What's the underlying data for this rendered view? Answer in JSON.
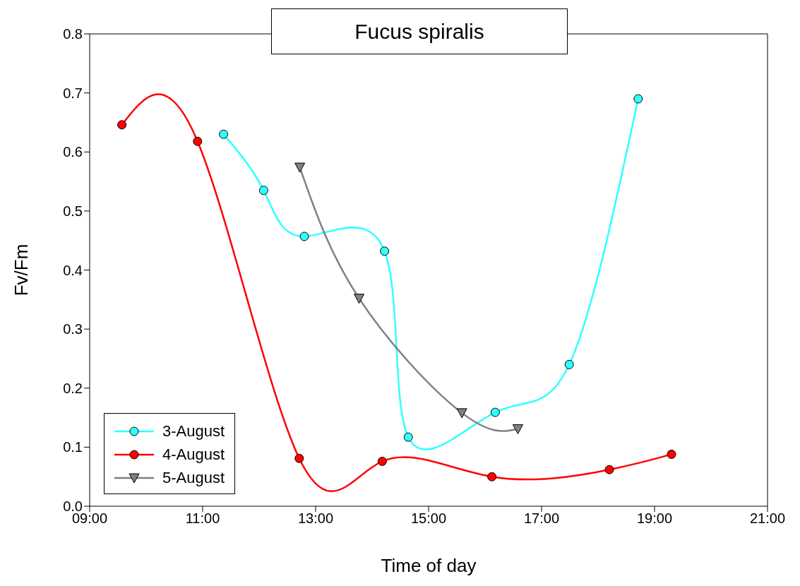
{
  "chart_data": {
    "type": "line",
    "title": "Fucus spiralis",
    "xlabel": "Time of day",
    "ylabel": "Fv/Fm",
    "xlim": [
      9,
      21
    ],
    "xticks": [
      {
        "value": 9,
        "label": "09:00"
      },
      {
        "value": 11,
        "label": "11:00"
      },
      {
        "value": 13,
        "label": "13:00"
      },
      {
        "value": 15,
        "label": "15:00"
      },
      {
        "value": 17,
        "label": "17:00"
      },
      {
        "value": 19,
        "label": "19:00"
      },
      {
        "value": 21,
        "label": "21:00"
      }
    ],
    "ylim": [
      0,
      0.8
    ],
    "yticks": [
      {
        "value": 0,
        "label": "0.0"
      },
      {
        "value": 0.1,
        "label": "0.1"
      },
      {
        "value": 0.2,
        "label": "0.2"
      },
      {
        "value": 0.3,
        "label": "0.3"
      },
      {
        "value": 0.4,
        "label": "0.4"
      },
      {
        "value": 0.5,
        "label": "0.5"
      },
      {
        "value": 0.6,
        "label": "0.6"
      },
      {
        "value": 0.7,
        "label": "0.7"
      },
      {
        "value": 0.8,
        "label": "0.8"
      }
    ],
    "grid": false,
    "legend": "bottom left",
    "line_style": "solid",
    "series": [
      {
        "name": "3-August",
        "color": "#33ffff",
        "marker": "circle",
        "x": [
          11.37,
          12.08,
          12.8,
          14.22,
          14.64,
          16.18,
          17.49,
          18.71
        ],
        "values": [
          0.63,
          0.535,
          0.457,
          0.432,
          0.117,
          0.159,
          0.24,
          0.69
        ]
      },
      {
        "name": "4-August",
        "color": "#ff0000",
        "marker": "circle",
        "x": [
          9.57,
          10.91,
          12.71,
          14.18,
          16.12,
          18.2,
          19.3
        ],
        "values": [
          0.646,
          0.618,
          0.081,
          0.076,
          0.05,
          0.062,
          0.088
        ]
      },
      {
        "name": "5-August",
        "color": "#808080",
        "marker": "triangle",
        "x": [
          12.72,
          13.77,
          15.59,
          16.58
        ],
        "values": [
          0.574,
          0.352,
          0.158,
          0.131
        ]
      }
    ]
  }
}
